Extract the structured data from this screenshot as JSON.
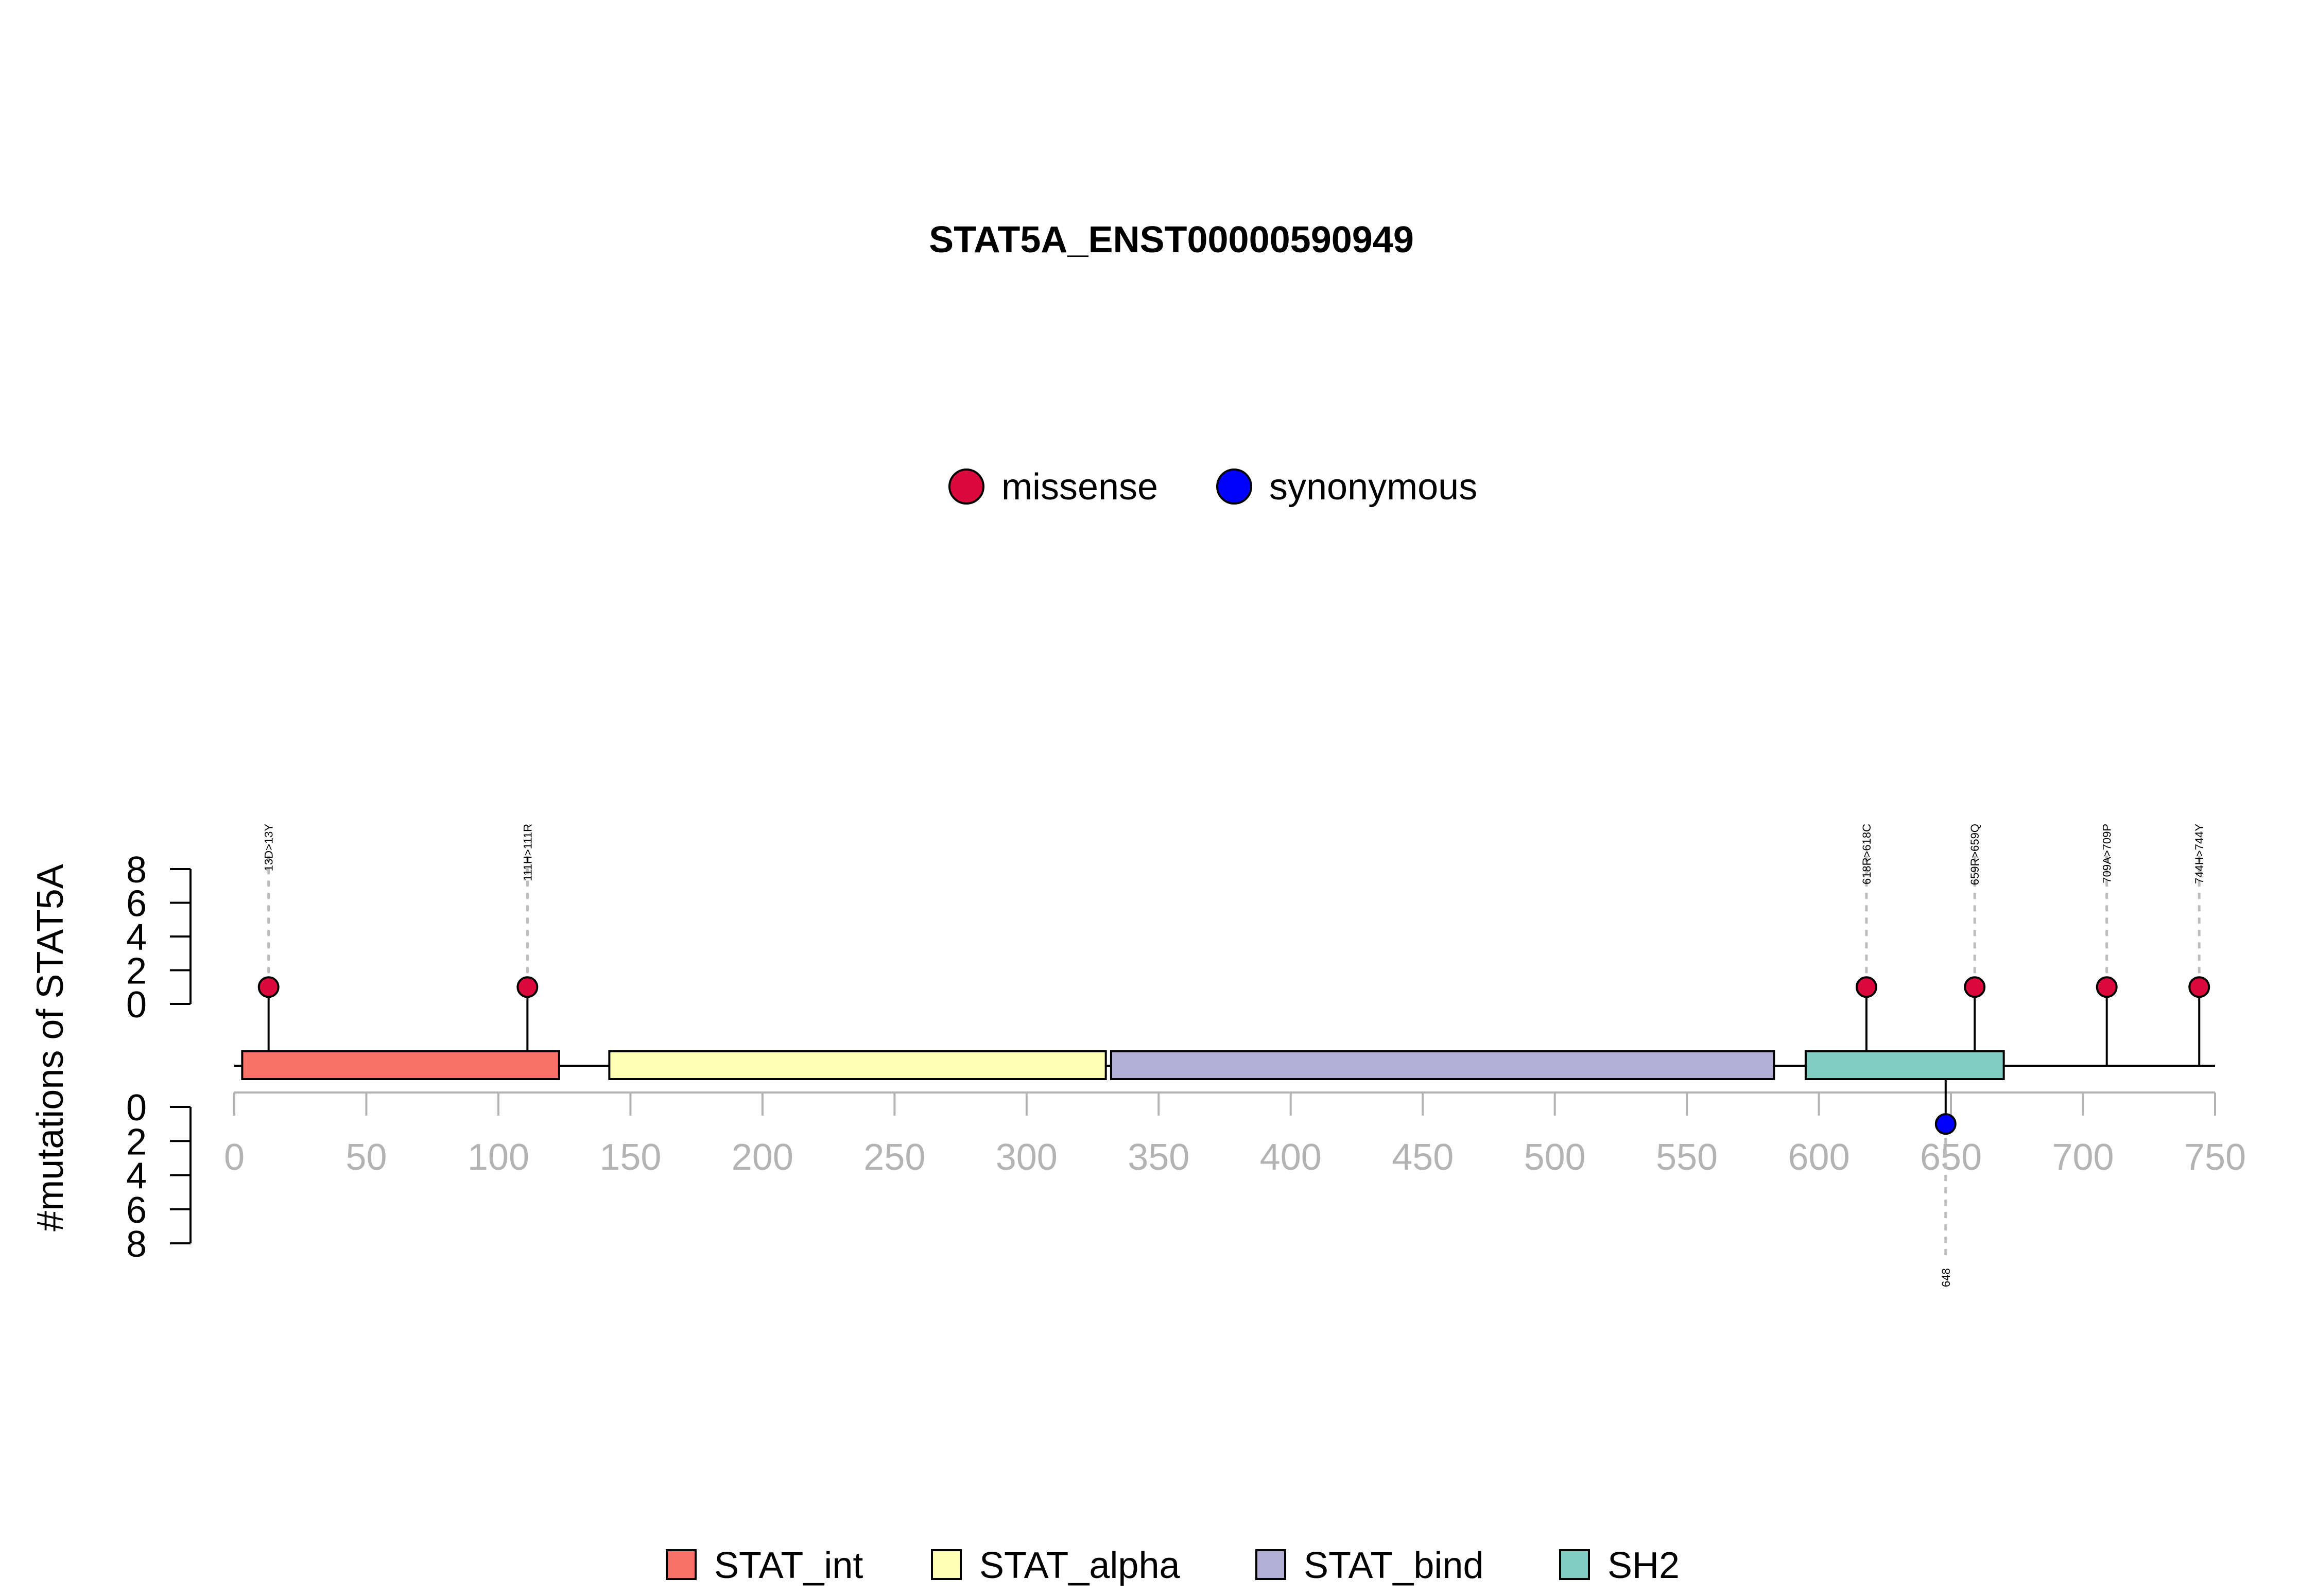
{
  "chart_data": {
    "type": "lollipop",
    "title": "STAT5A_ENST00000590949",
    "ylabel": "#mutations of STAT5A",
    "protein_length": 750,
    "xlim": [
      0,
      750
    ],
    "x_ticks": [
      0,
      50,
      100,
      150,
      200,
      250,
      300,
      350,
      400,
      450,
      500,
      550,
      600,
      650,
      700,
      750
    ],
    "x_tick_labels": [
      "0",
      "50",
      "100",
      "150",
      "200",
      "250",
      "300",
      "350",
      "400",
      "450",
      "500",
      "550",
      "600",
      "650",
      "700",
      "750"
    ],
    "y_ticks": [
      0,
      2,
      4,
      6,
      8
    ],
    "y_tick_labels": [
      "0",
      "2",
      "4",
      "6",
      "8"
    ],
    "ylim": [
      0,
      8
    ],
    "mutation_legend": [
      {
        "name": "missense",
        "color": "#dc0a3c"
      },
      {
        "name": "synonymous",
        "color": "#0000ff"
      }
    ],
    "domain_legend": [
      {
        "name": "STAT_int",
        "color": "#f87268"
      },
      {
        "name": "STAT_alpha",
        "color": "#ffffb3"
      },
      {
        "name": "STAT_bind",
        "color": "#b3aed3"
      },
      {
        "name": "SH2",
        "color": "#80cdc1"
      }
    ],
    "domains": [
      {
        "name": "STAT_int",
        "start": 3,
        "end": 123,
        "color": "#f87268"
      },
      {
        "name": "STAT_alpha",
        "start": 142,
        "end": 330,
        "color": "#ffffb3"
      },
      {
        "name": "STAT_bind",
        "start": 332,
        "end": 583,
        "color": "#b3aed3"
      },
      {
        "name": "SH2",
        "start": 595,
        "end": 670,
        "color": "#80cdc1"
      }
    ],
    "mutations": [
      {
        "position": 13,
        "count": 1,
        "label": "13D>13Y",
        "type": "missense",
        "side": "top"
      },
      {
        "position": 111,
        "count": 1,
        "label": "111H>111R",
        "type": "missense",
        "side": "top"
      },
      {
        "position": 618,
        "count": 1,
        "label": "618R>618C",
        "type": "missense",
        "side": "top"
      },
      {
        "position": 659,
        "count": 1,
        "label": "659R>659Q",
        "type": "missense",
        "side": "top"
      },
      {
        "position": 709,
        "count": 1,
        "label": "709A>709P",
        "type": "missense",
        "side": "top"
      },
      {
        "position": 744,
        "count": 1,
        "label": "744H>744Y",
        "type": "missense",
        "side": "top"
      },
      {
        "position": 648,
        "count": 1,
        "label": "648",
        "type": "synonymous",
        "side": "bottom"
      }
    ]
  }
}
